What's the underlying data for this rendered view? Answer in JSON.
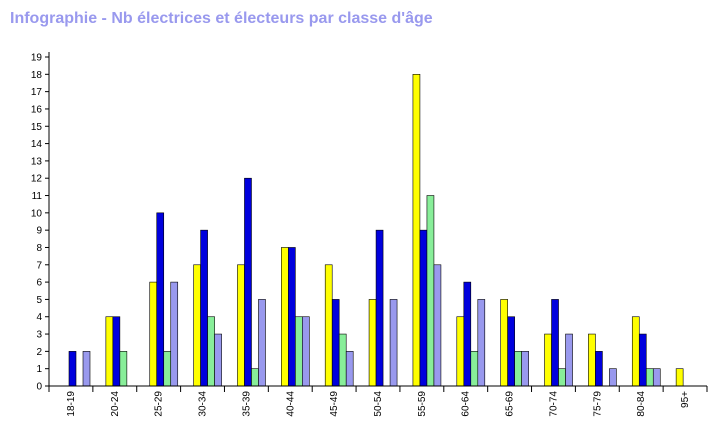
{
  "title": "Infographie - Nb électrices et électeurs par classe d'âge",
  "chart_data": {
    "type": "bar",
    "title": "Infographie - Nb électrices et électeurs par classe d'âge",
    "xlabel": "",
    "ylabel": "",
    "ylim": [
      0,
      19
    ],
    "yticks": [
      "0",
      "1",
      "2",
      "3",
      "4",
      "5",
      "6",
      "7",
      "8",
      "9",
      "10",
      "11",
      "12",
      "13",
      "14",
      "15",
      "16",
      "17",
      "18",
      "19"
    ],
    "categories": [
      "18-19",
      "20-24",
      "25-29",
      "30-34",
      "35-39",
      "40-44",
      "45-49",
      "50-54",
      "55-59",
      "60-64",
      "65-69",
      "70-74",
      "75-79",
      "80-84",
      "95+"
    ],
    "series": [
      {
        "color": "#ffff00",
        "values": [
          0,
          4,
          6,
          7,
          7,
          8,
          7,
          5,
          18,
          4,
          5,
          3,
          3,
          4,
          1
        ]
      },
      {
        "color": "#0000dd",
        "values": [
          2,
          4,
          10,
          9,
          12,
          8,
          5,
          9,
          9,
          6,
          4,
          5,
          2,
          3,
          0
        ]
      },
      {
        "color": "#88ee99",
        "values": [
          0,
          2,
          2,
          4,
          1,
          4,
          3,
          0,
          11,
          2,
          2,
          1,
          0,
          1,
          0
        ]
      },
      {
        "color": "#9999ee",
        "values": [
          2,
          0,
          6,
          3,
          5,
          4,
          2,
          5,
          7,
          5,
          2,
          3,
          1,
          1,
          0
        ]
      }
    ],
    "grid": false,
    "legend": "none"
  }
}
